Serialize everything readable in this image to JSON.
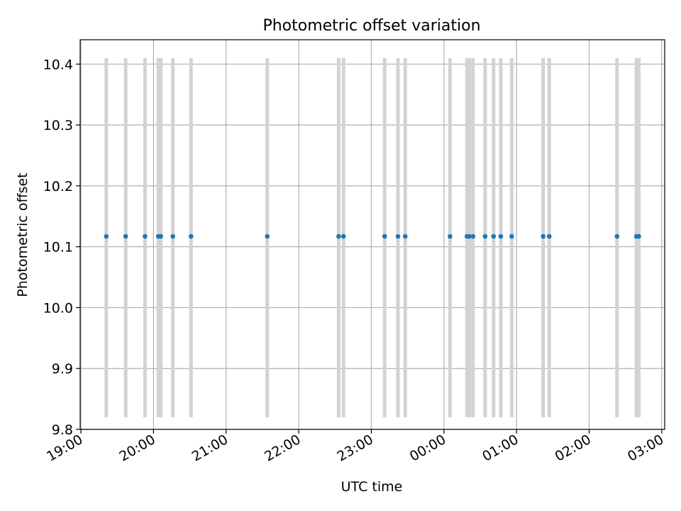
{
  "chart_data": {
    "type": "scatter",
    "title": "Photometric offset variation",
    "xlabel": "UTC time",
    "ylabel": "Photometric offset",
    "x_axis": {
      "kind": "time",
      "range": [
        "19:00",
        "03:00"
      ],
      "ticks": [
        "19:00",
        "20:00",
        "21:00",
        "22:00",
        "23:00",
        "00:00",
        "01:00",
        "02:00",
        "03:00"
      ]
    },
    "ylim": [
      9.8,
      10.44
    ],
    "y_ticks": [
      "9.8",
      "9.9",
      "10.0",
      "10.1",
      "10.2",
      "10.3",
      "10.4"
    ],
    "grid": true,
    "error_bar": {
      "lower": 9.82,
      "upper": 10.41
    },
    "series": [
      {
        "x": [
          "19:21",
          "19:37",
          "19:53",
          "20:04",
          "20:06",
          "20:16",
          "20:31",
          "21:34",
          "22:33",
          "22:37",
          "23:11",
          "23:22",
          "23:28",
          "00:05",
          "00:19",
          "00:21",
          "00:24",
          "00:34",
          "00:41",
          "00:47",
          "00:56",
          "01:22",
          "01:27",
          "02:23",
          "02:39",
          "02:41"
        ],
        "y": [
          10.117,
          10.117,
          10.117,
          10.117,
          10.117,
          10.117,
          10.117,
          10.117,
          10.117,
          10.117,
          10.117,
          10.117,
          10.117,
          10.117,
          10.117,
          10.117,
          10.117,
          10.117,
          10.117,
          10.117,
          10.117,
          10.117,
          10.117,
          10.117,
          10.117,
          10.117
        ]
      }
    ],
    "colors": {
      "points": "#1f77b4",
      "error_bars": "#d3d3d3",
      "grid": "#b0b0b0"
    }
  }
}
